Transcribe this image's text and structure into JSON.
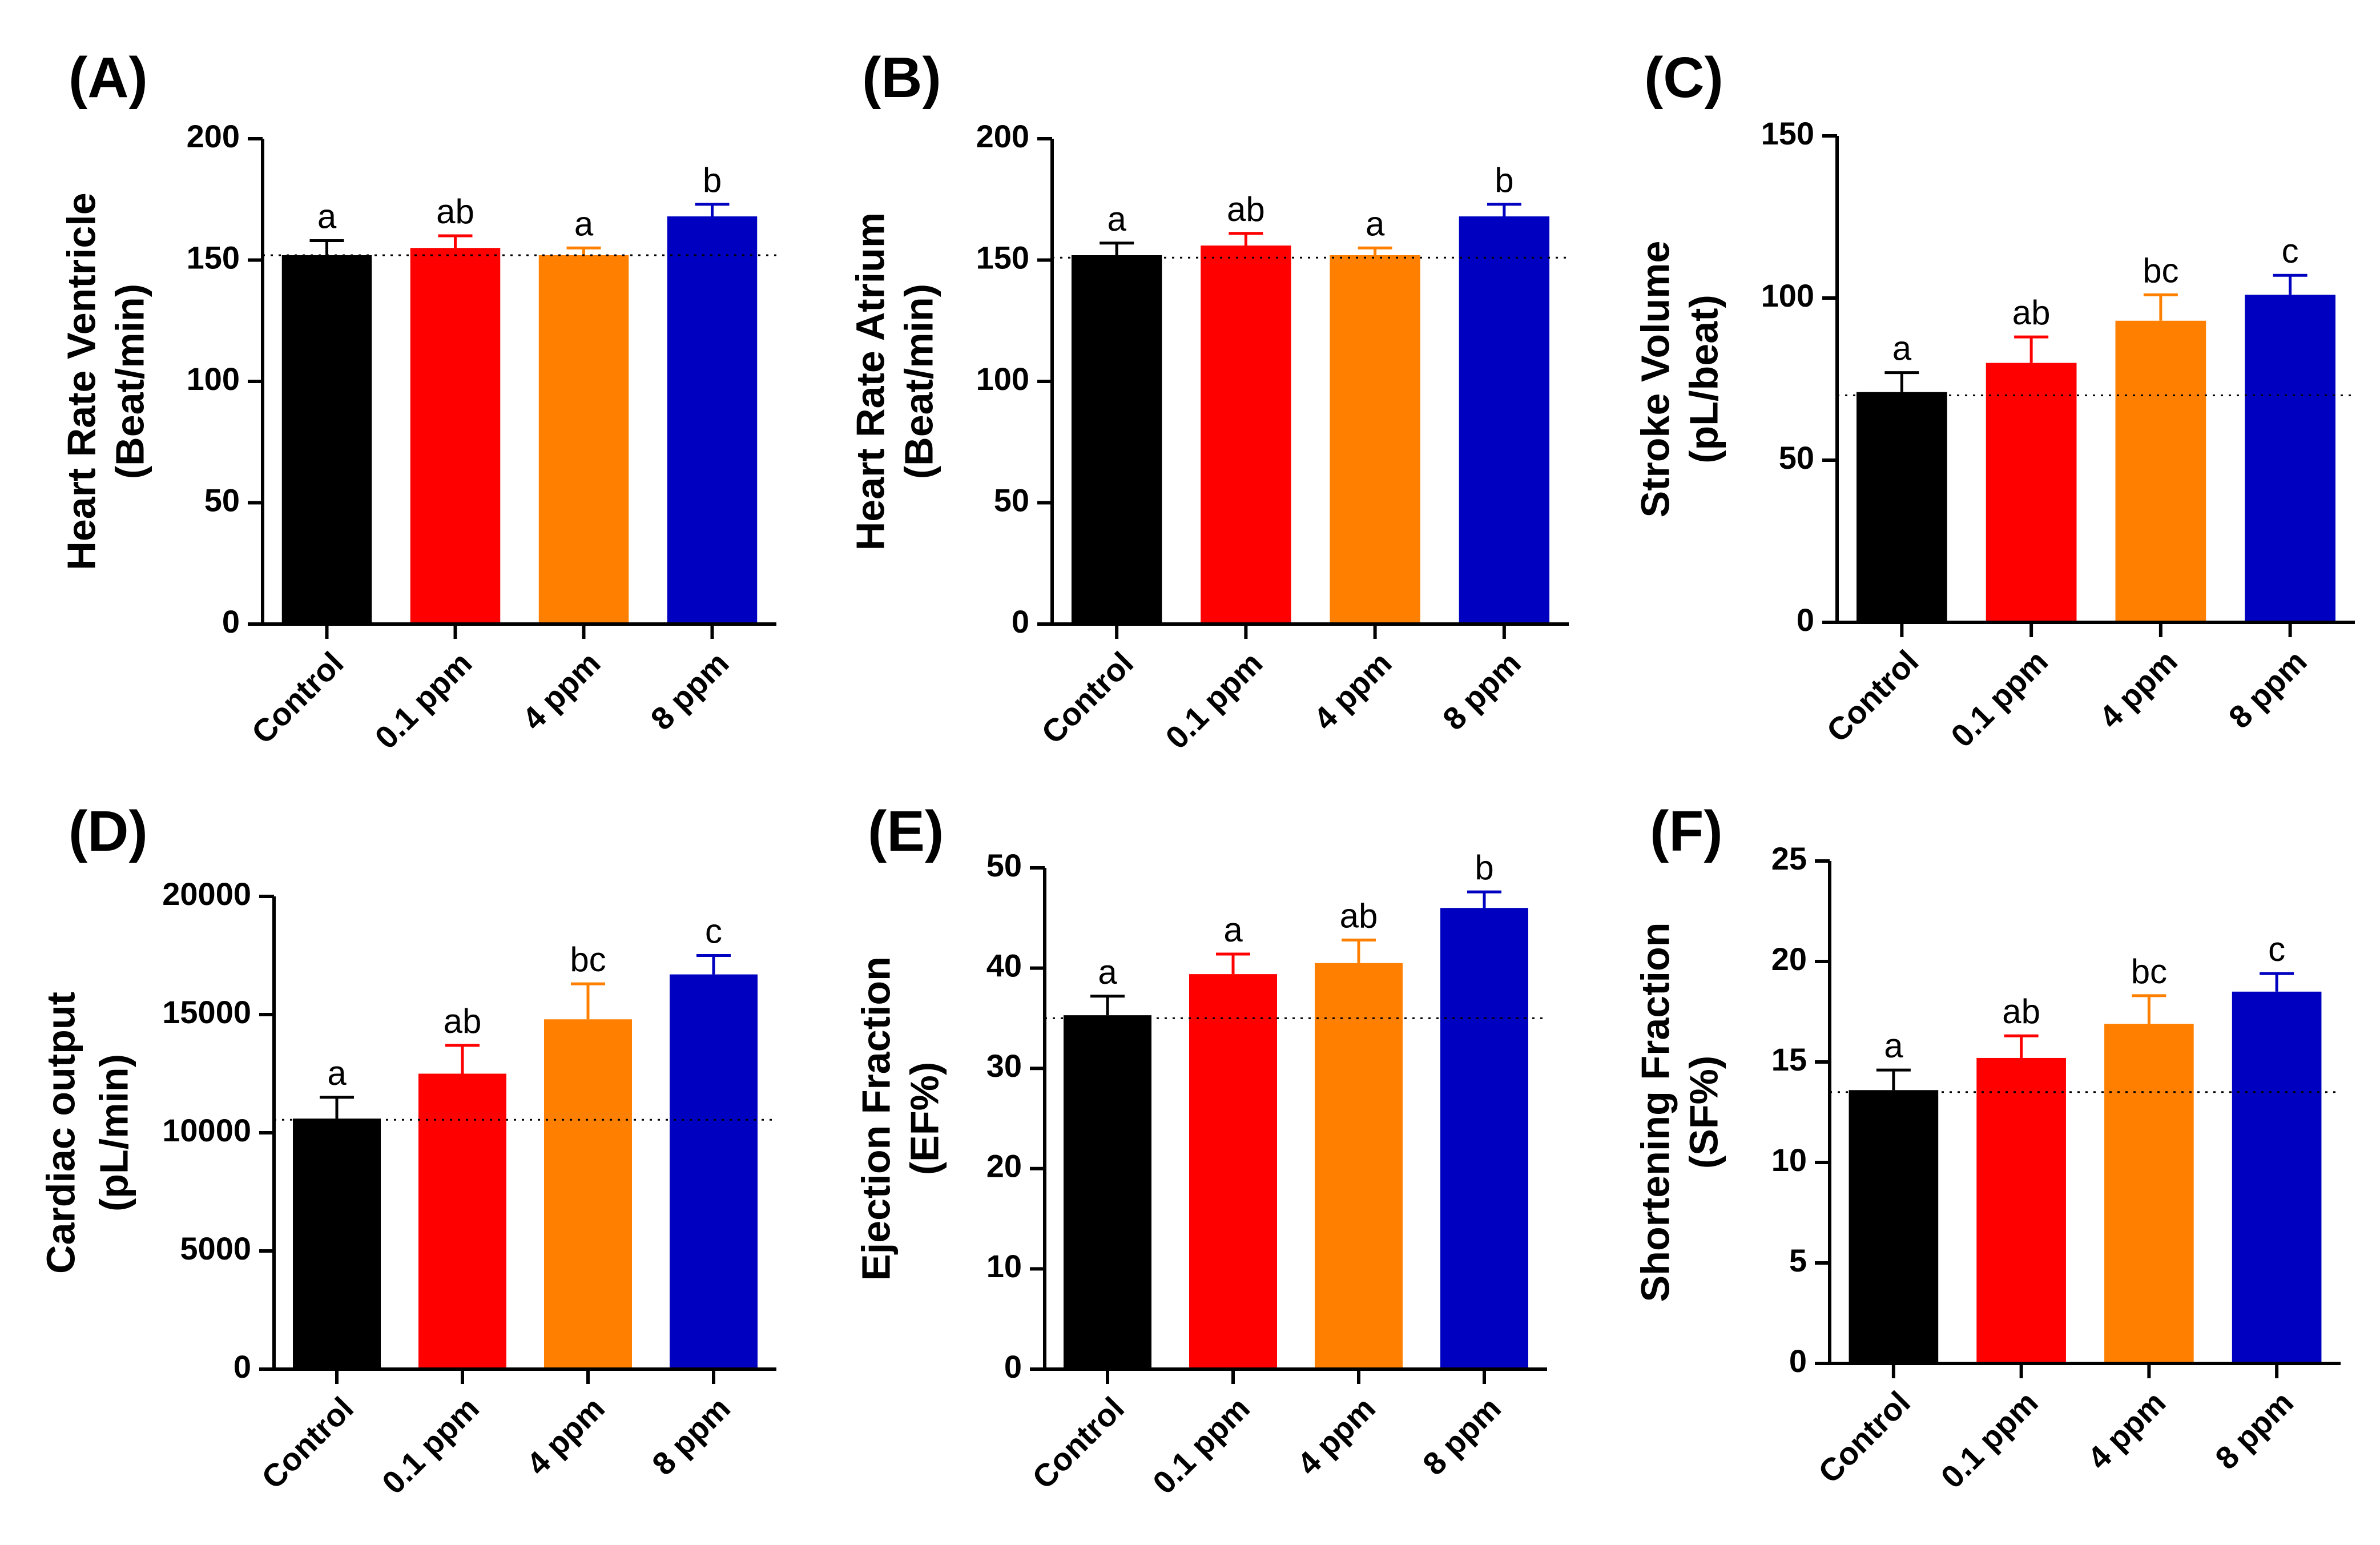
{
  "colors": {
    "Control": "#000000",
    "0.1 ppm": "#ff0000",
    "4 ppm": "#ff8000",
    "8 ppm": "#0000c0"
  },
  "chart_data": [
    {
      "panel": "(A)",
      "type": "bar",
      "ylabel_line1": "Heart Rate Ventricle",
      "ylabel_line2": "(Beat/min)",
      "categories": [
        "Control",
        "0.1 ppm",
        "4 ppm",
        "8 ppm"
      ],
      "values": [
        152,
        155,
        152,
        168
      ],
      "errors": [
        6,
        5,
        3,
        5
      ],
      "significance": [
        "a",
        "ab",
        "a",
        "b"
      ],
      "ylim": [
        0,
        200
      ],
      "yticks": [
        0,
        50,
        100,
        150,
        200
      ],
      "reference_line": 152
    },
    {
      "panel": "(B)",
      "type": "bar",
      "ylabel_line1": "Heart Rate Atrium",
      "ylabel_line2": "(Beat/min)",
      "categories": [
        "Control",
        "0.1 ppm",
        "4 ppm",
        "8 ppm"
      ],
      "values": [
        152,
        156,
        152,
        168
      ],
      "errors": [
        5,
        5,
        3,
        5
      ],
      "significance": [
        "a",
        "ab",
        "a",
        "b"
      ],
      "ylim": [
        0,
        200
      ],
      "yticks": [
        0,
        50,
        100,
        150,
        200
      ],
      "reference_line": 151
    },
    {
      "panel": "(C)",
      "type": "bar",
      "ylabel_line1": "Stroke Volume",
      "ylabel_line2": "(pL/beat)",
      "categories": [
        "Control",
        "0.1 ppm",
        "4 ppm",
        "8 ppm"
      ],
      "values": [
        71,
        80,
        93,
        101
      ],
      "errors": [
        6,
        8,
        8,
        6
      ],
      "significance": [
        "a",
        "ab",
        "bc",
        "c"
      ],
      "ylim": [
        0,
        150
      ],
      "yticks": [
        0,
        50,
        100,
        150
      ],
      "reference_line": 70
    },
    {
      "panel": "(D)",
      "type": "bar",
      "ylabel_line1": "Cardiac output",
      "ylabel_line2": "(pL/min)",
      "categories": [
        "Control",
        "0.1 ppm",
        "4 ppm",
        "8 ppm"
      ],
      "values": [
        10600,
        12500,
        14800,
        16700
      ],
      "errors": [
        900,
        1200,
        1500,
        800
      ],
      "significance": [
        "a",
        "ab",
        "bc",
        "c"
      ],
      "ylim": [
        0,
        20000
      ],
      "yticks": [
        0,
        5000,
        10000,
        15000,
        20000
      ],
      "reference_line": 10550
    },
    {
      "panel": "(E)",
      "type": "bar",
      "ylabel_line1": "Ejection Fraction",
      "ylabel_line2": "(EF%)",
      "categories": [
        "Control",
        "0.1 ppm",
        "4 ppm",
        "8 ppm"
      ],
      "values": [
        35.3,
        39.4,
        40.5,
        46
      ],
      "errors": [
        1.9,
        2,
        2.3,
        1.6
      ],
      "significance": [
        "a",
        "a",
        "ab",
        "b"
      ],
      "ylim": [
        0,
        50
      ],
      "yticks": [
        0,
        10,
        20,
        30,
        40,
        50
      ],
      "reference_line": 35
    },
    {
      "panel": "(F)",
      "type": "bar",
      "ylabel_line1": "Shortening Fraction",
      "ylabel_line2": "(SF%)",
      "categories": [
        "Control",
        "0.1 ppm",
        "4 ppm",
        "8 ppm"
      ],
      "values": [
        13.6,
        15.2,
        16.9,
        18.5
      ],
      "errors": [
        1,
        1.1,
        1.4,
        0.9
      ],
      "significance": [
        "a",
        "ab",
        "bc",
        "c"
      ],
      "ylim": [
        0,
        25
      ],
      "yticks": [
        0,
        5,
        10,
        15,
        20,
        25
      ],
      "reference_line": 13.5
    }
  ]
}
